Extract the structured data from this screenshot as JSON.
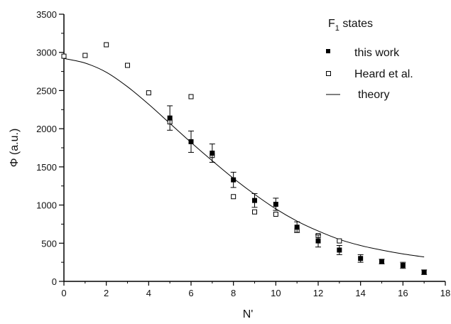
{
  "chart_data": {
    "type": "scatter",
    "title": "",
    "xlabel": "N'",
    "ylabel": "Φ (a.u.)",
    "xlim": [
      0,
      18
    ],
    "ylim": [
      0,
      3500
    ],
    "xticks": [
      0,
      2,
      4,
      6,
      8,
      10,
      12,
      14,
      16,
      18
    ],
    "yticks": [
      0,
      500,
      1000,
      1500,
      2000,
      2500,
      3000,
      3500
    ],
    "grid": false,
    "legend": {
      "placement": "top-right",
      "title_main": "F",
      "title_sub": "1",
      "title_rest": " states",
      "entries": [
        "this work",
        "Heard et al.",
        "theory"
      ]
    },
    "series": [
      {
        "name": "this work",
        "marker": "filled-square",
        "color": "#000000",
        "points": [
          {
            "x": 5,
            "y": 2140,
            "err": 160
          },
          {
            "x": 6,
            "y": 1830,
            "err": 140
          },
          {
            "x": 7,
            "y": 1680,
            "err": 120
          },
          {
            "x": 8,
            "y": 1330,
            "err": 100
          },
          {
            "x": 9,
            "y": 1060,
            "err": 90
          },
          {
            "x": 10,
            "y": 1010,
            "err": 80
          },
          {
            "x": 11,
            "y": 710,
            "err": 70
          },
          {
            "x": 12,
            "y": 530,
            "err": 80
          },
          {
            "x": 13,
            "y": 410,
            "err": 60
          },
          {
            "x": 14,
            "y": 300,
            "err": 50
          },
          {
            "x": 15,
            "y": 260,
            "err": 30
          },
          {
            "x": 16,
            "y": 210,
            "err": 40
          },
          {
            "x": 17,
            "y": 120,
            "err": 30
          }
        ]
      },
      {
        "name": "Heard et al.",
        "marker": "open-square",
        "color": "#000000",
        "points": [
          {
            "x": 0,
            "y": 2950
          },
          {
            "x": 1,
            "y": 2960
          },
          {
            "x": 2,
            "y": 3100
          },
          {
            "x": 3,
            "y": 2830
          },
          {
            "x": 4,
            "y": 2470
          },
          {
            "x": 5,
            "y": 2090
          },
          {
            "x": 6,
            "y": 2420
          },
          {
            "x": 7,
            "y": 1650
          },
          {
            "x": 8,
            "y": 1110
          },
          {
            "x": 9,
            "y": 910
          },
          {
            "x": 10,
            "y": 880
          },
          {
            "x": 11,
            "y": 670
          },
          {
            "x": 12,
            "y": 600
          },
          {
            "x": 13,
            "y": 530
          }
        ]
      },
      {
        "name": "theory",
        "type": "line",
        "color": "#000000",
        "x": [
          0,
          1,
          2,
          3,
          4,
          5,
          6,
          7,
          8,
          9,
          10,
          11,
          12,
          13,
          14,
          15,
          16,
          17
        ],
        "y": [
          2920,
          2860,
          2740,
          2550,
          2320,
          2070,
          1820,
          1580,
          1350,
          1140,
          950,
          790,
          660,
          550,
          470,
          410,
          360,
          320
        ]
      }
    ]
  }
}
